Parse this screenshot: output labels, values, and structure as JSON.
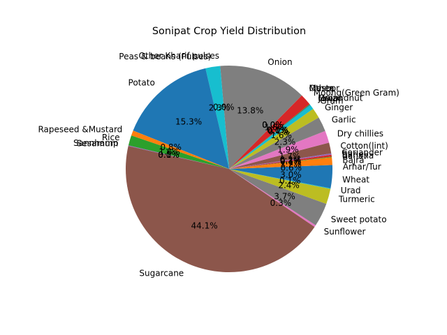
{
  "chart_data": {
    "type": "pie",
    "title": "Sonipat Crop Yield Distribution",
    "start_angle_deg": 0,
    "direction": "counterclockwise",
    "slices": [
      {
        "label": "Arhar/Tur",
        "value": 0.6,
        "pct_text": "0.6%",
        "color": "#1f77b4"
      },
      {
        "label": "Bajra",
        "value": 1.2,
        "pct_text": "1.2%",
        "color": "#ff7f0e"
      },
      {
        "label": "Banana",
        "value": 0.1,
        "pct_text": "0.1%",
        "color": "#2ca02c"
      },
      {
        "label": "Barley",
        "value": 0.3,
        "pct_text": "0.3%",
        "color": "#d62728"
      },
      {
        "label": "Coriander",
        "value": 0.2,
        "pct_text": "0.2%",
        "color": "#9467bd"
      },
      {
        "label": "Cotton(lint)",
        "value": 1.7,
        "pct_text": "1.7%",
        "color": "#8c564b"
      },
      {
        "label": "Dry chillies",
        "value": 1.9,
        "pct_text": "1.9%",
        "color": "#e377c2"
      },
      {
        "label": "Garlic",
        "value": 2.3,
        "pct_text": "2.3%",
        "color": "#7f7f7f"
      },
      {
        "label": "Ginger",
        "value": 1.6,
        "pct_text": "1.6%",
        "color": "#bcbd22"
      },
      {
        "label": "Gram",
        "value": 0.7,
        "pct_text": "0.7%",
        "color": "#17becf"
      },
      {
        "label": "Jowar",
        "value": 0.1,
        "pct_text": "0.1%",
        "color": "#1f77b4"
      },
      {
        "label": "Groundnut",
        "value": 0.0,
        "pct_text": "0.0%",
        "color": "#ff7f0e"
      },
      {
        "label": "Maize",
        "value": 0.1,
        "pct_text": "0.1%",
        "color": "#2ca02c"
      },
      {
        "label": "Moong(Green Gram)",
        "value": 1.8,
        "pct_text": "1.8%",
        "color": "#d62728"
      },
      {
        "label": "Masoor",
        "value": 0.0,
        "pct_text": "0.0%",
        "color": "#9467bd"
      },
      {
        "label": "Mesta",
        "value": 0.0,
        "pct_text": "0.0%",
        "color": "#8c564b"
      },
      {
        "label": "Other",
        "value": 0.0,
        "pct_text": "0.0%",
        "color": "#e377c2"
      },
      {
        "label": "Onion",
        "value": 13.8,
        "pct_text": "13.8%",
        "color": "#7f7f7f"
      },
      {
        "label": "Other Kharif pulses",
        "value": 0.0,
        "pct_text": "0.0%",
        "color": "#bcbd22"
      },
      {
        "label": "Peas & beans (Pulses)",
        "value": 2.3,
        "pct_text": "2.3%",
        "color": "#17becf"
      },
      {
        "label": "Potato",
        "value": 15.3,
        "pct_text": "15.3%",
        "color": "#1f77b4"
      },
      {
        "label": "Rapeseed &Mustard",
        "value": 0.8,
        "pct_text": "0.8%",
        "color": "#ff7f0e"
      },
      {
        "label": "Rice",
        "value": 1.6,
        "pct_text": "1.6%",
        "color": "#2ca02c"
      },
      {
        "label": "Sannhamp",
        "value": 0.0,
        "pct_text": "0.0%",
        "color": "#d62728"
      },
      {
        "label": "Sesamum",
        "value": 0.1,
        "pct_text": "0.1%",
        "color": "#9467bd"
      },
      {
        "label": "Sugarcane",
        "value": 44.1,
        "pct_text": "44.1%",
        "color": "#8c564b"
      },
      {
        "label": "Sunflower",
        "value": 0.3,
        "pct_text": "0.3%",
        "color": "#e377c2"
      },
      {
        "label": "Sweet potato",
        "value": 3.7,
        "pct_text": "3.7%",
        "color": "#7f7f7f"
      },
      {
        "label": "Turmeric",
        "value": 2.4,
        "pct_text": "2.4%",
        "color": "#bcbd22"
      },
      {
        "label": "Urad",
        "value": 0.1,
        "pct_text": "0.1%",
        "color": "#17becf"
      },
      {
        "label": "Wheat",
        "value": 3.0,
        "pct_text": "3.0%",
        "color": "#1f77b4"
      }
    ]
  }
}
